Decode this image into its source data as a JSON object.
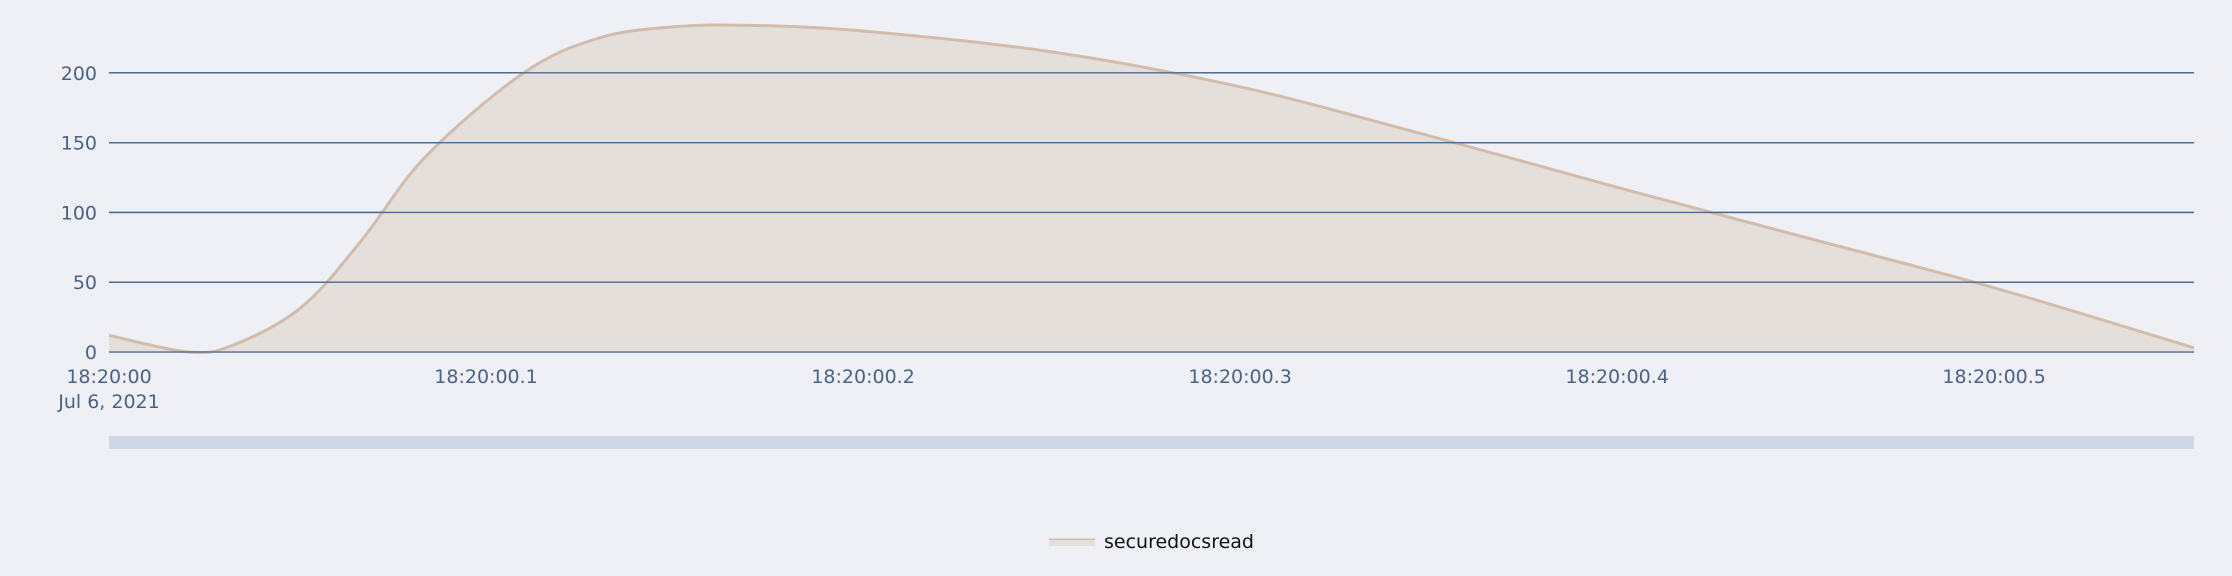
{
  "chart_data": {
    "type": "area",
    "title": "",
    "xlabel": "",
    "ylabel": "",
    "x_range": [
      "2021-07-06 18:20:00.000",
      "2021-07-06 18:20:00.553"
    ],
    "ylim": [
      0,
      235
    ],
    "y_ticks": [
      0,
      50,
      100,
      150,
      200
    ],
    "y_tick_labels": [
      "0",
      "50",
      "100",
      "150",
      "200"
    ],
    "x_ticks": [
      "2021-07-06 18:20:00.0",
      "2021-07-06 18:20:00.1",
      "2021-07-06 18:20:00.2",
      "2021-07-06 18:20:00.3",
      "2021-07-06 18:20:00.4",
      "2021-07-06 18:20:00.5"
    ],
    "x_tick_labels": [
      "18:20:00",
      "18:20:00.1",
      "18:20:00.2",
      "18:20:00.3",
      "18:20:00.4",
      "18:20:00.5"
    ],
    "x_date_label": "Jul 6, 2021",
    "grid": true,
    "legend_position": "bottom-center",
    "range_slider": true,
    "series": [
      {
        "name": "securedocsread",
        "color": "#d2bcab",
        "fill_color": "#e5dfdc",
        "x": [
          "2021-07-06 18:20:00.000",
          "2021-07-06 18:20:00.021",
          "2021-07-06 18:20:00.033",
          "2021-07-06 18:20:00.051",
          "2021-07-06 18:20:00.067",
          "2021-07-06 18:20:00.084",
          "2021-07-06 18:20:00.110",
          "2021-07-06 18:20:00.130",
          "2021-07-06 18:20:00.150",
          "2021-07-06 18:20:00.170",
          "2021-07-06 18:20:00.200",
          "2021-07-06 18:20:00.250",
          "2021-07-06 18:20:00.300",
          "2021-07-06 18:20:00.350",
          "2021-07-06 18:20:00.400",
          "2021-07-06 18:20:00.450",
          "2021-07-06 18:20:00.500",
          "2021-07-06 18:20:00.553"
        ],
        "y": [
          12,
          0,
          5,
          32,
          80,
          140,
          200,
          225,
          233,
          234,
          230,
          215,
          190,
          155,
          118,
          82,
          46,
          3
        ]
      }
    ]
  }
}
